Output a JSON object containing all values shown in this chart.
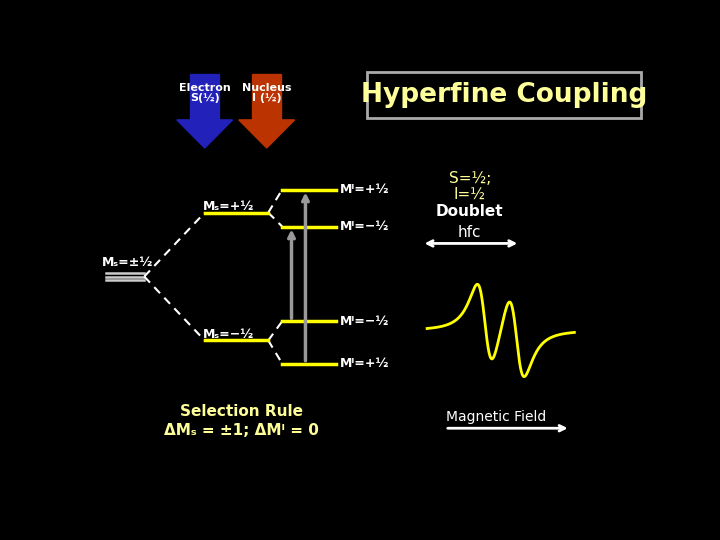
{
  "bg_color": "#000000",
  "title": "Hyperfine Coupling",
  "title_color": "#ffff99",
  "title_box_color": "#aaaaaa",
  "electron_arrow_color": "#2222bb",
  "nucleus_arrow_color": "#bb3300",
  "label_color": "#ffffff",
  "level_color": "#ffff00",
  "transition_color": "#999999",
  "dotted_color": "#ffffff",
  "signal_color": "#ffff00",
  "electron_label_l1": "Electron",
  "electron_label_l2": "S(½)",
  "nucleus_label_l1": "Nucleus",
  "nucleus_label_l2": "I (½)",
  "ms_plus_label": "Mₛ=+½",
  "ms_minus_label": "Mₛ=−½",
  "ms_pm_label": "Mₛ=±½",
  "mi_plus": "Mᴵ=+½",
  "mi_minus": "Mᴵ=−½",
  "doublet_line1": "S=½;",
  "doublet_line2": "I=½",
  "doublet_line3": "Doublet",
  "hfc_label": "hfc",
  "sel_rule_line1": "Selection Rule",
  "sel_rule_line2": "ΔMₛ = ±1; ΔMᴵ = 0",
  "mag_field_label": "Magnetic Field"
}
